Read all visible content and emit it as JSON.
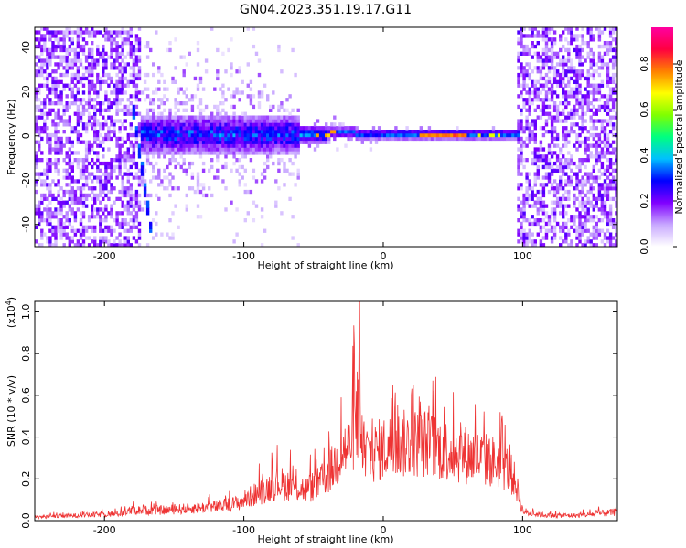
{
  "title": "GN04.2023.351.19.17.G11",
  "chart_data": [
    {
      "type": "heatmap",
      "xlabel": "Height of straight line (km)",
      "ylabel": "Frequency (Hz)",
      "xlim": [
        -250,
        168
      ],
      "ylim": [
        -50,
        49
      ],
      "xticks": [
        -200,
        -100,
        0,
        100
      ],
      "yticks": [
        -40,
        -20,
        0,
        20,
        40
      ],
      "colorbar": {
        "label": "Normalized spectral amplitude",
        "range": [
          0,
          0.96
        ],
        "ticks": [
          0.0,
          0.2,
          0.4,
          0.6,
          0.8
        ],
        "colormap": [
          "#ffffff",
          "#c8a8ff",
          "#8000ff",
          "#0000ff",
          "#00c0ff",
          "#00ff80",
          "#80ff00",
          "#ffff00",
          "#ff8000",
          "#ff0040",
          "#ff00a0"
        ]
      },
      "features": {
        "noise_band_left": [
          -250,
          -175
        ],
        "noise_band_right": [
          95,
          168
        ],
        "dispersive_streak": {
          "x": [
            -180,
            -168
          ],
          "y": [
            10,
            -42
          ]
        },
        "carrier_line": {
          "x": [
            -175,
            97
          ],
          "y_hz": 0
        },
        "peak_segment": {
          "x": [
            25,
            58
          ],
          "amplitude": 0.96
        }
      }
    },
    {
      "type": "line",
      "xlabel": "Height of straight line (km)",
      "ylabel": "SNR (10 * v/v)",
      "yunit": "(x10",
      "yunit_exp": "4",
      "yunit_close": ")",
      "xlim": [
        -250,
        168
      ],
      "ylim": [
        0,
        1.05
      ],
      "xticks": [
        -200,
        -100,
        0,
        100
      ],
      "yticks": [
        0.0,
        0.2,
        0.4,
        0.6,
        0.8,
        1.0
      ],
      "color": "#ee3333",
      "envelope": {
        "x": [
          -250,
          -220,
          -190,
          -180,
          -160,
          -140,
          -120,
          -105,
          -95,
          -85,
          -75,
          -65,
          -55,
          -45,
          -35,
          -30,
          -25,
          -20,
          -17,
          -15,
          -12,
          -10,
          -5,
          0,
          10,
          20,
          30,
          40,
          50,
          60,
          70,
          80,
          90,
          95,
          100,
          105,
          120,
          140,
          168
        ],
        "y": [
          0.02,
          0.03,
          0.04,
          0.06,
          0.06,
          0.07,
          0.08,
          0.1,
          0.14,
          0.18,
          0.22,
          0.2,
          0.18,
          0.22,
          0.32,
          0.4,
          0.42,
          0.55,
          0.6,
          0.45,
          0.4,
          0.38,
          0.4,
          0.42,
          0.44,
          0.45,
          0.45,
          0.42,
          0.4,
          0.38,
          0.36,
          0.34,
          0.3,
          0.22,
          0.06,
          0.04,
          0.03,
          0.03,
          0.05
        ]
      },
      "peak": {
        "x": -17,
        "y": 1.05
      }
    }
  ]
}
